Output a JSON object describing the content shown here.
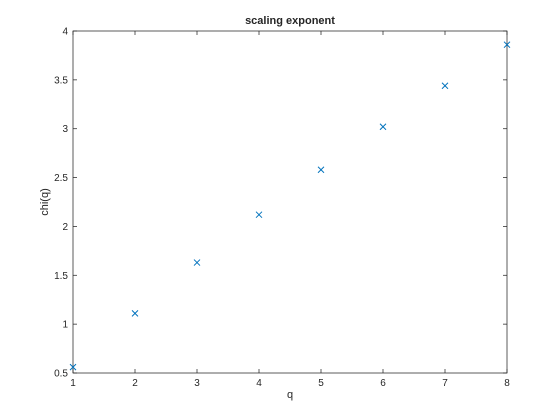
{
  "chart_data": {
    "type": "scatter",
    "title": "scaling exponent",
    "xlabel": "q",
    "ylabel": "chi(q)",
    "xlim": [
      1,
      8
    ],
    "ylim": [
      0.5,
      4
    ],
    "xticks": [
      "1",
      "2",
      "3",
      "4",
      "5",
      "6",
      "7",
      "8"
    ],
    "yticks": [
      "0.5",
      "1",
      "1.5",
      "2",
      "2.5",
      "3",
      "3.5",
      "4"
    ],
    "grid": false,
    "marker": "x",
    "series": [
      {
        "color": "#0072BD",
        "x": [
          1,
          2,
          3,
          4,
          5,
          6,
          7,
          8
        ],
        "y": [
          0.56,
          1.11,
          1.63,
          2.12,
          2.58,
          3.02,
          3.44,
          3.86
        ]
      }
    ]
  }
}
